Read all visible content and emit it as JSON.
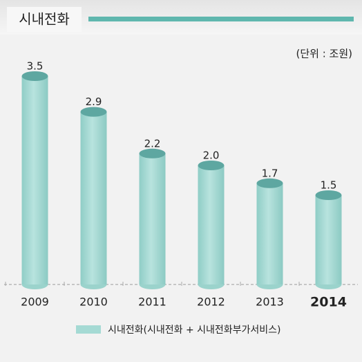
{
  "chart_data": {
    "type": "bar",
    "title": "시내전화",
    "unit_label": "(단위 : 조원)",
    "categories": [
      "2009",
      "2010",
      "2011",
      "2012",
      "2013",
      "2014"
    ],
    "series": [
      {
        "name": "시내전화(시내전화 + 시내전화부가서비스)",
        "color": "#a5dad4",
        "values": [
          3.5,
          2.9,
          2.2,
          2.0,
          1.7,
          1.5
        ],
        "value_labels": [
          "3.5",
          "2.9",
          "2.2",
          "2.0",
          "1.7",
          "1.5"
        ]
      }
    ],
    "ylim": [
      0,
      4
    ]
  }
}
